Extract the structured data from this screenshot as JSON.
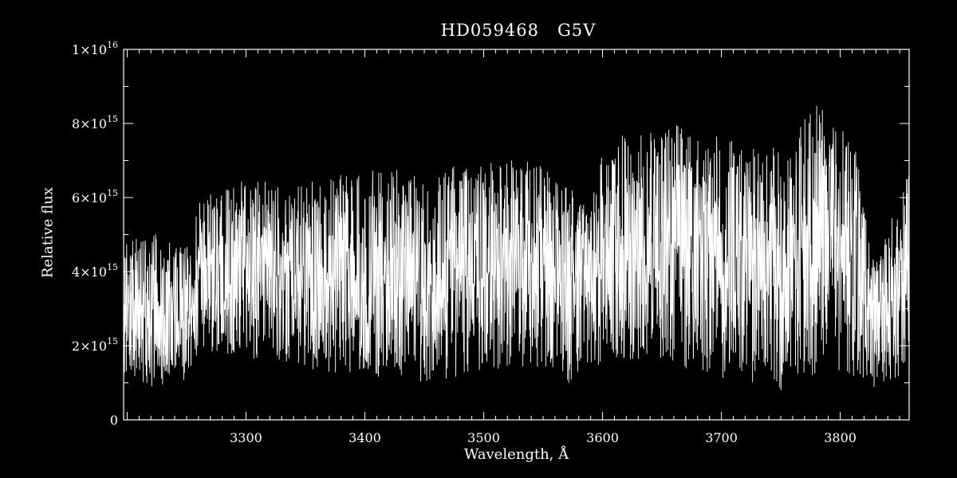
{
  "chart_data": {
    "type": "line",
    "title": "HD059468   G5V",
    "xlabel": "Wavelength, Å",
    "ylabel": "Relative flux",
    "xlim": [
      3197,
      3858
    ],
    "ylim": [
      0,
      1e+16
    ],
    "x_ticks": [
      3300,
      3400,
      3500,
      3600,
      3700,
      3800
    ],
    "x_tick_labels": [
      "3300",
      "3400",
      "3500",
      "3600",
      "3700",
      "3800"
    ],
    "y_ticks": [
      {
        "value": 0,
        "mantissa": "0",
        "exponent": ""
      },
      {
        "value": 2000000000000000.0,
        "mantissa": "2×10",
        "exponent": "15"
      },
      {
        "value": 4000000000000000.0,
        "mantissa": "4×10",
        "exponent": "15"
      },
      {
        "value": 6000000000000000.0,
        "mantissa": "6×10",
        "exponent": "15"
      },
      {
        "value": 8000000000000000.0,
        "mantissa": "8×10",
        "exponent": "15"
      },
      {
        "value": 1e+16,
        "mantissa": "1×10",
        "exponent": "16"
      }
    ],
    "grid": false,
    "colors": {
      "background": "#000000",
      "line": "#ffffff"
    },
    "series": [
      {
        "x_start": 3197,
        "x_end": 3858,
        "envelope": [
          {
            "x": 3197,
            "low": 1200000000000000.0,
            "high": 4800000000000000.0
          },
          {
            "x": 3220,
            "low": 900000000000000.0,
            "high": 5100000000000000.0
          },
          {
            "x": 3250,
            "low": 1000000000000000.0,
            "high": 4800000000000000.0
          },
          {
            "x": 3260,
            "low": 1800000000000000.0,
            "high": 6000000000000000.0
          },
          {
            "x": 3300,
            "low": 1700000000000000.0,
            "high": 6500000000000000.0
          },
          {
            "x": 3350,
            "low": 1300000000000000.0,
            "high": 6400000000000000.0
          },
          {
            "x": 3400,
            "low": 1200000000000000.0,
            "high": 6800000000000000.0
          },
          {
            "x": 3450,
            "low": 1000000000000000.0,
            "high": 6700000000000000.0
          },
          {
            "x": 3500,
            "low": 1300000000000000.0,
            "high": 7000000000000000.0
          },
          {
            "x": 3550,
            "low": 1400000000000000.0,
            "high": 7000000000000000.0
          },
          {
            "x": 3570,
            "low": 800000000000000.0,
            "high": 6600000000000000.0
          },
          {
            "x": 3590,
            "low": 1500000000000000.0,
            "high": 5600000000000000.0
          },
          {
            "x": 3600,
            "low": 1400000000000000.0,
            "high": 7600000000000000.0
          },
          {
            "x": 3650,
            "low": 1600000000000000.0,
            "high": 8000000000000000.0
          },
          {
            "x": 3700,
            "low": 1000000000000000.0,
            "high": 7800000000000000.0
          },
          {
            "x": 3750,
            "low": 800000000000000.0,
            "high": 7300000000000000.0
          },
          {
            "x": 3780,
            "low": 1200000000000000.0,
            "high": 8600000000000000.0
          },
          {
            "x": 3810,
            "low": 1200000000000000.0,
            "high": 7800000000000000.0
          },
          {
            "x": 3830,
            "low": 800000000000000.0,
            "high": 4200000000000000.0
          },
          {
            "x": 3858,
            "low": 1300000000000000.0,
            "high": 6800000000000000.0
          }
        ]
      }
    ]
  }
}
